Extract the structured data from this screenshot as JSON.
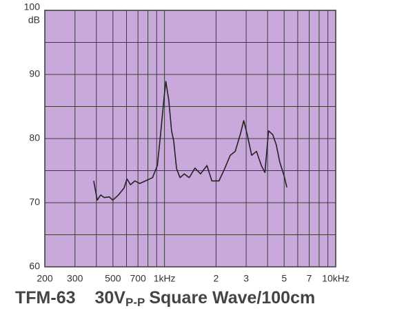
{
  "chart_data": {
    "type": "line",
    "title": {
      "model": "TFM-63",
      "main": "30V",
      "sub": "P-P",
      "rest": "Square Wave/100cm"
    },
    "y_unit": "dB",
    "x": [
      386,
      405,
      424,
      445,
      476,
      499,
      539,
      581,
      604,
      633,
      671,
      717,
      774,
      851,
      909,
      953,
      996,
      1019,
      1059,
      1100,
      1132,
      1176,
      1233,
      1305,
      1395,
      1506,
      1624,
      1770,
      1890,
      2080,
      2246,
      2422,
      2589,
      2766,
      2903,
      3045,
      3226,
      3446,
      3679,
      3860,
      4052,
      4290,
      4496,
      4717,
      4993,
      5183
    ],
    "series": [
      {
        "color": "#222222",
        "values": [
          73.4,
          70.4,
          71.2,
          70.8,
          70.9,
          70.4,
          71.2,
          72.3,
          73.7,
          72.8,
          73.4,
          73.0,
          73.4,
          73.9,
          75.8,
          81.2,
          86.6,
          88.9,
          86.0,
          81.2,
          79.6,
          75.3,
          73.9,
          74.5,
          73.9,
          75.4,
          74.5,
          75.8,
          73.4,
          73.4,
          75.3,
          77.4,
          78.0,
          80.6,
          82.8,
          80.6,
          77.4,
          78.0,
          75.8,
          74.7,
          81.2,
          80.6,
          79.0,
          76.3,
          74.2,
          72.4
        ]
      }
    ],
    "xlim": [
      200,
      10000
    ],
    "xscale": "log",
    "xticks": [
      200,
      300,
      500,
      700,
      {
        "value": 1000,
        "label": "1kHz"
      },
      {
        "value": 2000,
        "label": "2"
      },
      {
        "value": 3000,
        "label": "3"
      },
      {
        "value": 5000,
        "label": "5"
      },
      {
        "value": 7000,
        "label": "7"
      },
      {
        "value": 10000,
        "label": "10kHz"
      }
    ],
    "minor_xticks": [
      400,
      600,
      800,
      900,
      4000,
      6000,
      8000,
      9000
    ],
    "ylim": [
      60,
      100
    ],
    "yticks": [
      60,
      70,
      80,
      90,
      100
    ],
    "minor_yticks": [
      65,
      75,
      85,
      95
    ],
    "grid": true,
    "plot_color": "#c9a9db"
  }
}
